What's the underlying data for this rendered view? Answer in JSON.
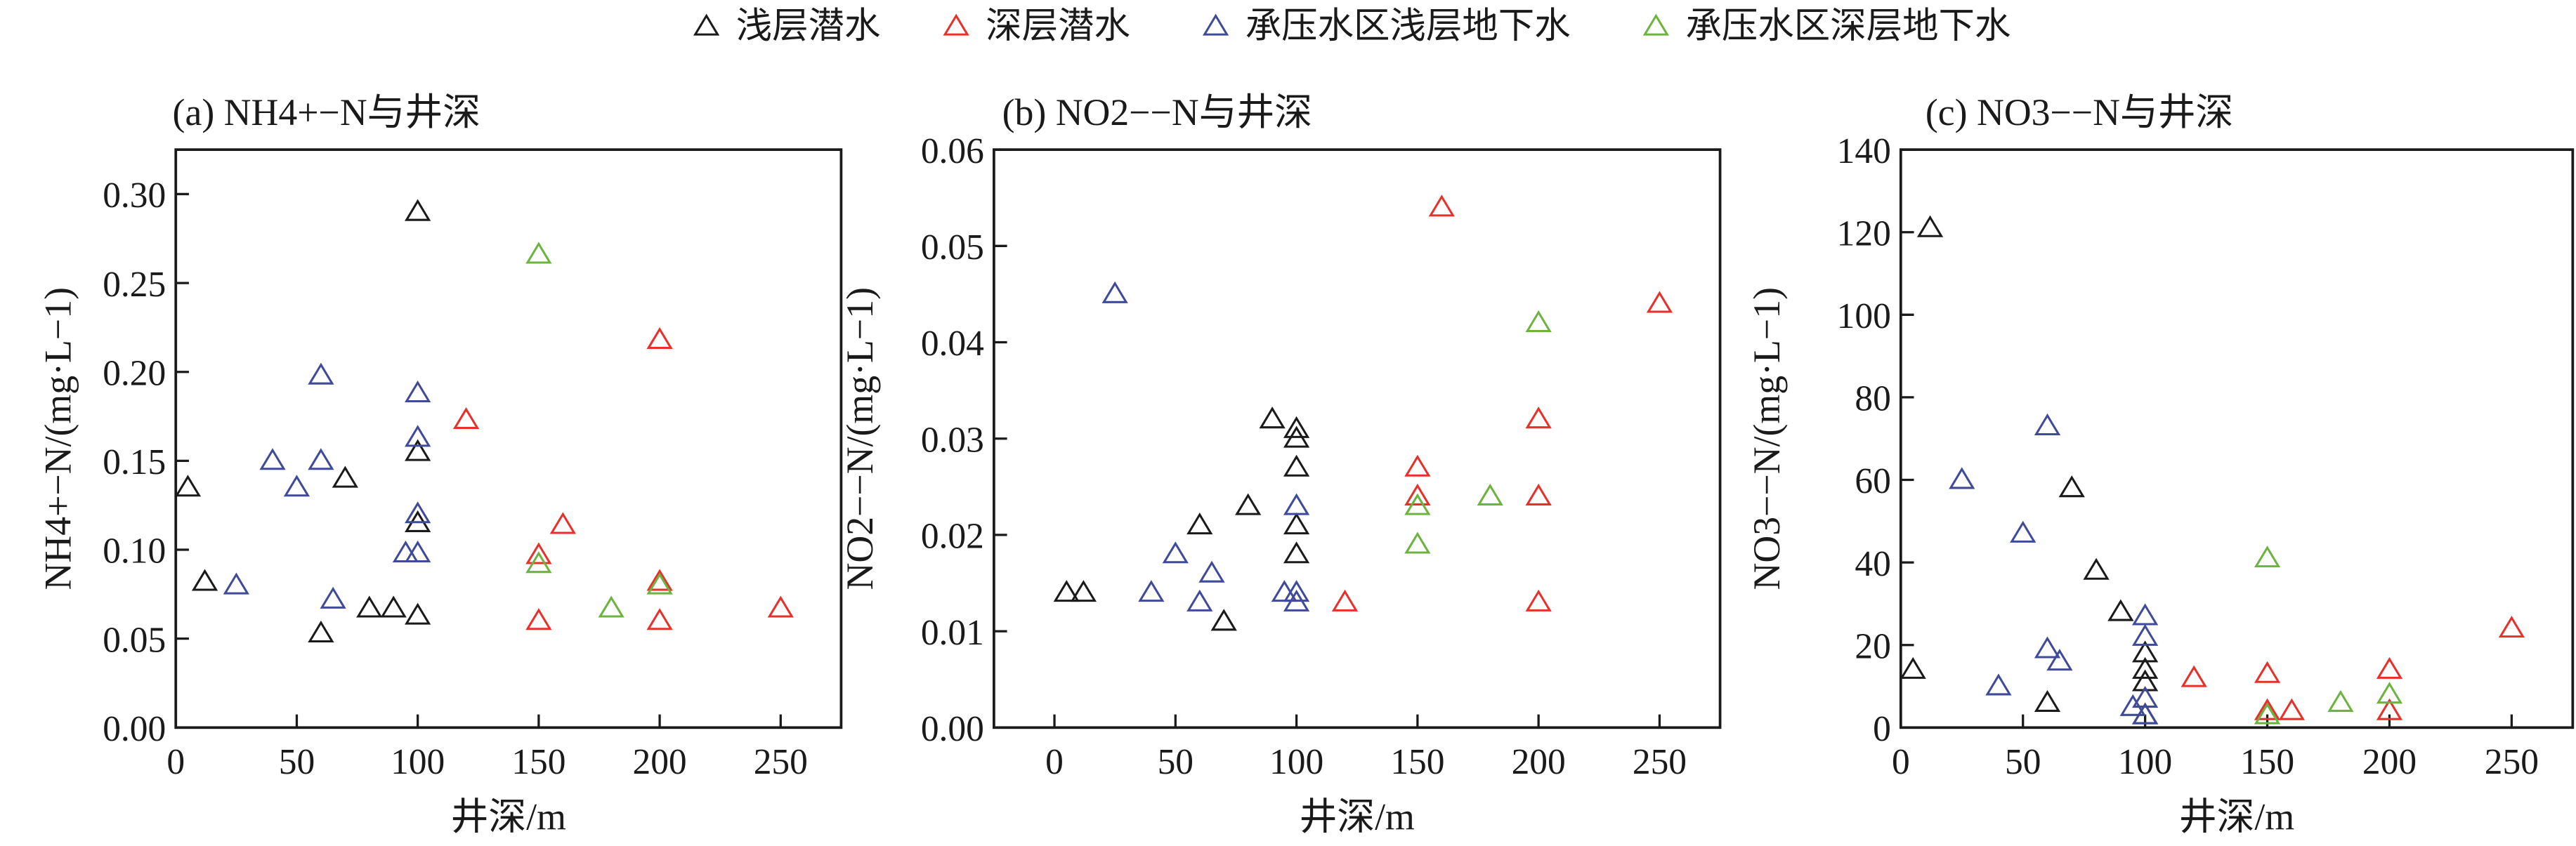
{
  "legend": [
    {
      "label": "浅层潜水",
      "color": "#1a1a1a"
    },
    {
      "label": "深层潜水",
      "color": "#e8302a"
    },
    {
      "label": "承压水区浅层地下水",
      "color": "#3f4a9a"
    },
    {
      "label": "承压水区深层地下水",
      "color": "#6db33f"
    }
  ],
  "chart_data": [
    {
      "type": "scatter",
      "title": "(a) NH4+−N与井深",
      "xlabel": "井深/m",
      "ylabel": "NH4+−N/(mg·L−1)",
      "xlim": [
        0,
        275
      ],
      "ylim": [
        0,
        0.325
      ],
      "xticks": [
        0,
        50,
        100,
        150,
        200,
        250
      ],
      "yticks": [
        "0.00",
        "0.05",
        "0.10",
        "0.15",
        "0.20",
        "0.25",
        "0.30"
      ],
      "series": [
        {
          "name": "浅层潜水",
          "points": [
            [
              5,
              0.135
            ],
            [
              12,
              0.082
            ],
            [
              60,
              0.053
            ],
            [
              70,
              0.14
            ],
            [
              80,
              0.067
            ],
            [
              90,
              0.067
            ],
            [
              100,
              0.29
            ],
            [
              100,
              0.155
            ],
            [
              100,
              0.115
            ],
            [
              100,
              0.063
            ]
          ]
        },
        {
          "name": "深层潜水",
          "points": [
            [
              120,
              0.173
            ],
            [
              150,
              0.097
            ],
            [
              150,
              0.06
            ],
            [
              160,
              0.114
            ],
            [
              200,
              0.218
            ],
            [
              200,
              0.082
            ],
            [
              200,
              0.06
            ],
            [
              250,
              0.067
            ]
          ]
        },
        {
          "name": "承压水区浅层地下水",
          "points": [
            [
              25,
              0.08
            ],
            [
              40,
              0.15
            ],
            [
              50,
              0.135
            ],
            [
              60,
              0.198
            ],
            [
              60,
              0.15
            ],
            [
              65,
              0.072
            ],
            [
              95,
              0.098
            ],
            [
              100,
              0.098
            ],
            [
              100,
              0.12
            ],
            [
              100,
              0.163
            ],
            [
              100,
              0.188
            ]
          ]
        },
        {
          "name": "承压水区深层地下水",
          "points": [
            [
              150,
              0.266
            ],
            [
              150,
              0.092
            ],
            [
              180,
              0.067
            ],
            [
              200,
              0.08
            ]
          ]
        }
      ]
    },
    {
      "type": "scatter",
      "title": "(b) NO2−−N与井深",
      "xlabel": "井深/m",
      "ylabel": "NO2−−N/(mg·L−1)",
      "xlim": [
        -25,
        275
      ],
      "ylim": [
        0,
        0.06
      ],
      "xticks": [
        0,
        50,
        100,
        150,
        200,
        250
      ],
      "yticks": [
        "0.00",
        "0.01",
        "0.02",
        "0.03",
        "0.04",
        "0.05",
        "0.06"
      ],
      "series": [
        {
          "name": "浅层潜水",
          "points": [
            [
              5,
              0.014
            ],
            [
              12,
              0.014
            ],
            [
              60,
              0.021
            ],
            [
              70,
              0.011
            ],
            [
              80,
              0.023
            ],
            [
              90,
              0.032
            ],
            [
              100,
              0.031
            ],
            [
              100,
              0.03
            ],
            [
              100,
              0.027
            ],
            [
              100,
              0.021
            ],
            [
              100,
              0.018
            ]
          ]
        },
        {
          "name": "深层潜水",
          "points": [
            [
              120,
              0.013
            ],
            [
              150,
              0.027
            ],
            [
              150,
              0.024
            ],
            [
              160,
              0.054
            ],
            [
              200,
              0.032
            ],
            [
              200,
              0.024
            ],
            [
              200,
              0.013
            ],
            [
              250,
              0.044
            ]
          ]
        },
        {
          "name": "承压水区浅层地下水",
          "points": [
            [
              25,
              0.045
            ],
            [
              40,
              0.014
            ],
            [
              50,
              0.018
            ],
            [
              60,
              0.013
            ],
            [
              65,
              0.016
            ],
            [
              95,
              0.014
            ],
            [
              100,
              0.014
            ],
            [
              100,
              0.013
            ],
            [
              100,
              0.023
            ]
          ]
        },
        {
          "name": "承压水区深层地下水",
          "points": [
            [
              150,
              0.023
            ],
            [
              150,
              0.019
            ],
            [
              180,
              0.024
            ],
            [
              200,
              0.042
            ]
          ]
        }
      ]
    },
    {
      "type": "scatter",
      "title": "(c) NO3−−N与井深",
      "xlabel": "井深/m",
      "ylabel": "NO3−−N/(mg·L−1)",
      "xlim": [
        0,
        275
      ],
      "ylim": [
        0,
        140
      ],
      "xticks": [
        0,
        50,
        100,
        150,
        200,
        250
      ],
      "yticks": [
        "0",
        "20",
        "40",
        "60",
        "80",
        "100",
        "120",
        "140"
      ],
      "series": [
        {
          "name": "浅层潜水",
          "points": [
            [
              5,
              14
            ],
            [
              12,
              121
            ],
            [
              60,
              6
            ],
            [
              70,
              58
            ],
            [
              80,
              38
            ],
            [
              90,
              28
            ],
            [
              100,
              18
            ],
            [
              100,
              14
            ],
            [
              100,
              11
            ],
            [
              100,
              3
            ]
          ]
        },
        {
          "name": "深层潜水",
          "points": [
            [
              120,
              12
            ],
            [
              150,
              13
            ],
            [
              150,
              4
            ],
            [
              160,
              4
            ],
            [
              200,
              14
            ],
            [
              200,
              4
            ],
            [
              250,
              24
            ]
          ]
        },
        {
          "name": "承压水区浅层地下水",
          "points": [
            [
              25,
              60
            ],
            [
              40,
              10
            ],
            [
              50,
              47
            ],
            [
              60,
              73
            ],
            [
              60,
              19
            ],
            [
              65,
              16
            ],
            [
              95,
              5
            ],
            [
              100,
              27
            ],
            [
              100,
              22
            ],
            [
              100,
              7
            ],
            [
              100,
              3
            ]
          ]
        },
        {
          "name": "承压水区深层地下水",
          "points": [
            [
              150,
              41
            ],
            [
              150,
              3
            ],
            [
              180,
              6
            ],
            [
              200,
              8
            ]
          ]
        }
      ]
    }
  ]
}
